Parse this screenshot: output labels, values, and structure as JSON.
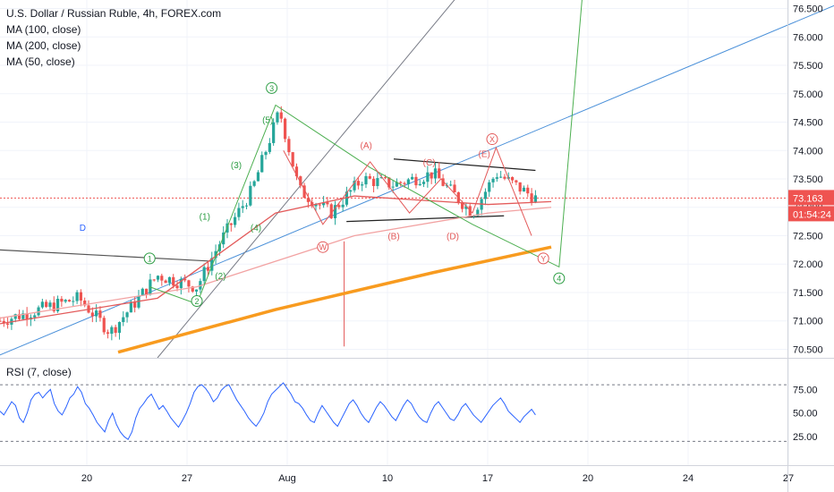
{
  "chart_data": {
    "type": "candlestick",
    "title": "U.S. Dollar / Russian Ruble, 4h, FOREX.com",
    "indicators": [
      "MA (100, close)",
      "MA (200, close)",
      "MA (50, close)"
    ],
    "price_axis": {
      "ticks": [
        "76.500",
        "76.000",
        "75.500",
        "75.000",
        "74.500",
        "74.000",
        "73.500",
        "73.000",
        "72.500",
        "72.000",
        "71.500",
        "71.000",
        "70.500"
      ],
      "ylim": [
        70.35,
        76.65
      ]
    },
    "last_price": "73.163",
    "countdown": "01:54:24",
    "time_axis": {
      "labels": [
        "20",
        "27",
        "Aug",
        "10",
        "17",
        "20",
        "24",
        "27"
      ]
    },
    "rsi": {
      "label": "RSI (7, close)",
      "ticks": [
        "75.00",
        "50.00",
        "25.00"
      ],
      "upper_band": 80,
      "lower_band": 20,
      "values": [
        52,
        48,
        55,
        62,
        58,
        45,
        40,
        50,
        64,
        70,
        72,
        66,
        71,
        75,
        60,
        52,
        48,
        56,
        66,
        70,
        78,
        72,
        60,
        55,
        48,
        40,
        35,
        30,
        42,
        50,
        38,
        30,
        25,
        22,
        30,
        45,
        55,
        60,
        66,
        70,
        62,
        54,
        58,
        52,
        45,
        40,
        35,
        42,
        50,
        60,
        72,
        78,
        80,
        76,
        70,
        62,
        66,
        74,
        78,
        80,
        72,
        64,
        58,
        52,
        45,
        40,
        36,
        42,
        50,
        62,
        70,
        74,
        78,
        82,
        76,
        70,
        62,
        60,
        55,
        48,
        42,
        40,
        50,
        58,
        52,
        46,
        40,
        36,
        44,
        52,
        60,
        64,
        58,
        50,
        44,
        40,
        48,
        56,
        62,
        58,
        52,
        46,
        42,
        50,
        58,
        64,
        60,
        52,
        46,
        42,
        40,
        50,
        58,
        62,
        56,
        50,
        44,
        42,
        48,
        56,
        60,
        54,
        48,
        44,
        40,
        46,
        52,
        58,
        62,
        66,
        60,
        52,
        48,
        44,
        40,
        46,
        50,
        54,
        48
      ]
    },
    "series": [
      {
        "name": "MA (200, close)",
        "color": "#f89b1f",
        "x": [
          0.15,
          0.35,
          0.55,
          0.7
        ],
        "y": [
          70.45,
          71.2,
          71.85,
          72.3
        ]
      },
      {
        "name": "MA (100, close)",
        "color": "#f2a2a2",
        "x": [
          0.0,
          0.25,
          0.45,
          0.62,
          0.7
        ],
        "y": [
          71.05,
          71.6,
          72.5,
          72.9,
          73.0
        ]
      },
      {
        "name": "MA (50, close)",
        "color": "#e35a5a",
        "x": [
          0.0,
          0.2,
          0.35,
          0.45,
          0.62,
          0.7
        ],
        "y": [
          70.95,
          71.4,
          72.9,
          73.2,
          73.05,
          73.1
        ]
      }
    ],
    "annotations": {
      "green_waves": [
        {
          "label": "1",
          "price": 72.1,
          "xf": 0.19
        },
        {
          "label": "2",
          "price": 71.35,
          "xf": 0.25
        },
        {
          "label": "3",
          "price": 75.1,
          "xf": 0.345
        },
        {
          "label": "4",
          "price": 71.75,
          "xf": 0.71
        },
        {
          "label": "(1)",
          "price": 72.85,
          "xf": 0.26
        },
        {
          "label": "(2)",
          "price": 71.8,
          "xf": 0.28
        },
        {
          "label": "(3)",
          "price": 73.75,
          "xf": 0.3
        },
        {
          "label": "(4)",
          "price": 72.65,
          "xf": 0.325
        },
        {
          "label": "(5)",
          "price": 74.55,
          "xf": 0.34
        }
      ],
      "red_waves": [
        {
          "label": "W",
          "price": 72.3,
          "xf": 0.41
        },
        {
          "label": "X",
          "price": 74.2,
          "xf": 0.625
        },
        {
          "label": "Y",
          "price": 72.1,
          "xf": 0.69
        },
        {
          "label": "(A)",
          "price": 74.1,
          "xf": 0.465
        },
        {
          "label": "(B)",
          "price": 72.5,
          "xf": 0.5
        },
        {
          "label": "(C)",
          "price": 73.8,
          "xf": 0.545
        },
        {
          "label": "(D)",
          "price": 72.5,
          "xf": 0.575
        },
        {
          "label": "(E)",
          "price": 73.95,
          "xf": 0.615
        }
      ],
      "blue_marks": [
        {
          "label": "D",
          "price": 72.65,
          "xf": 0.105
        }
      ]
    }
  }
}
